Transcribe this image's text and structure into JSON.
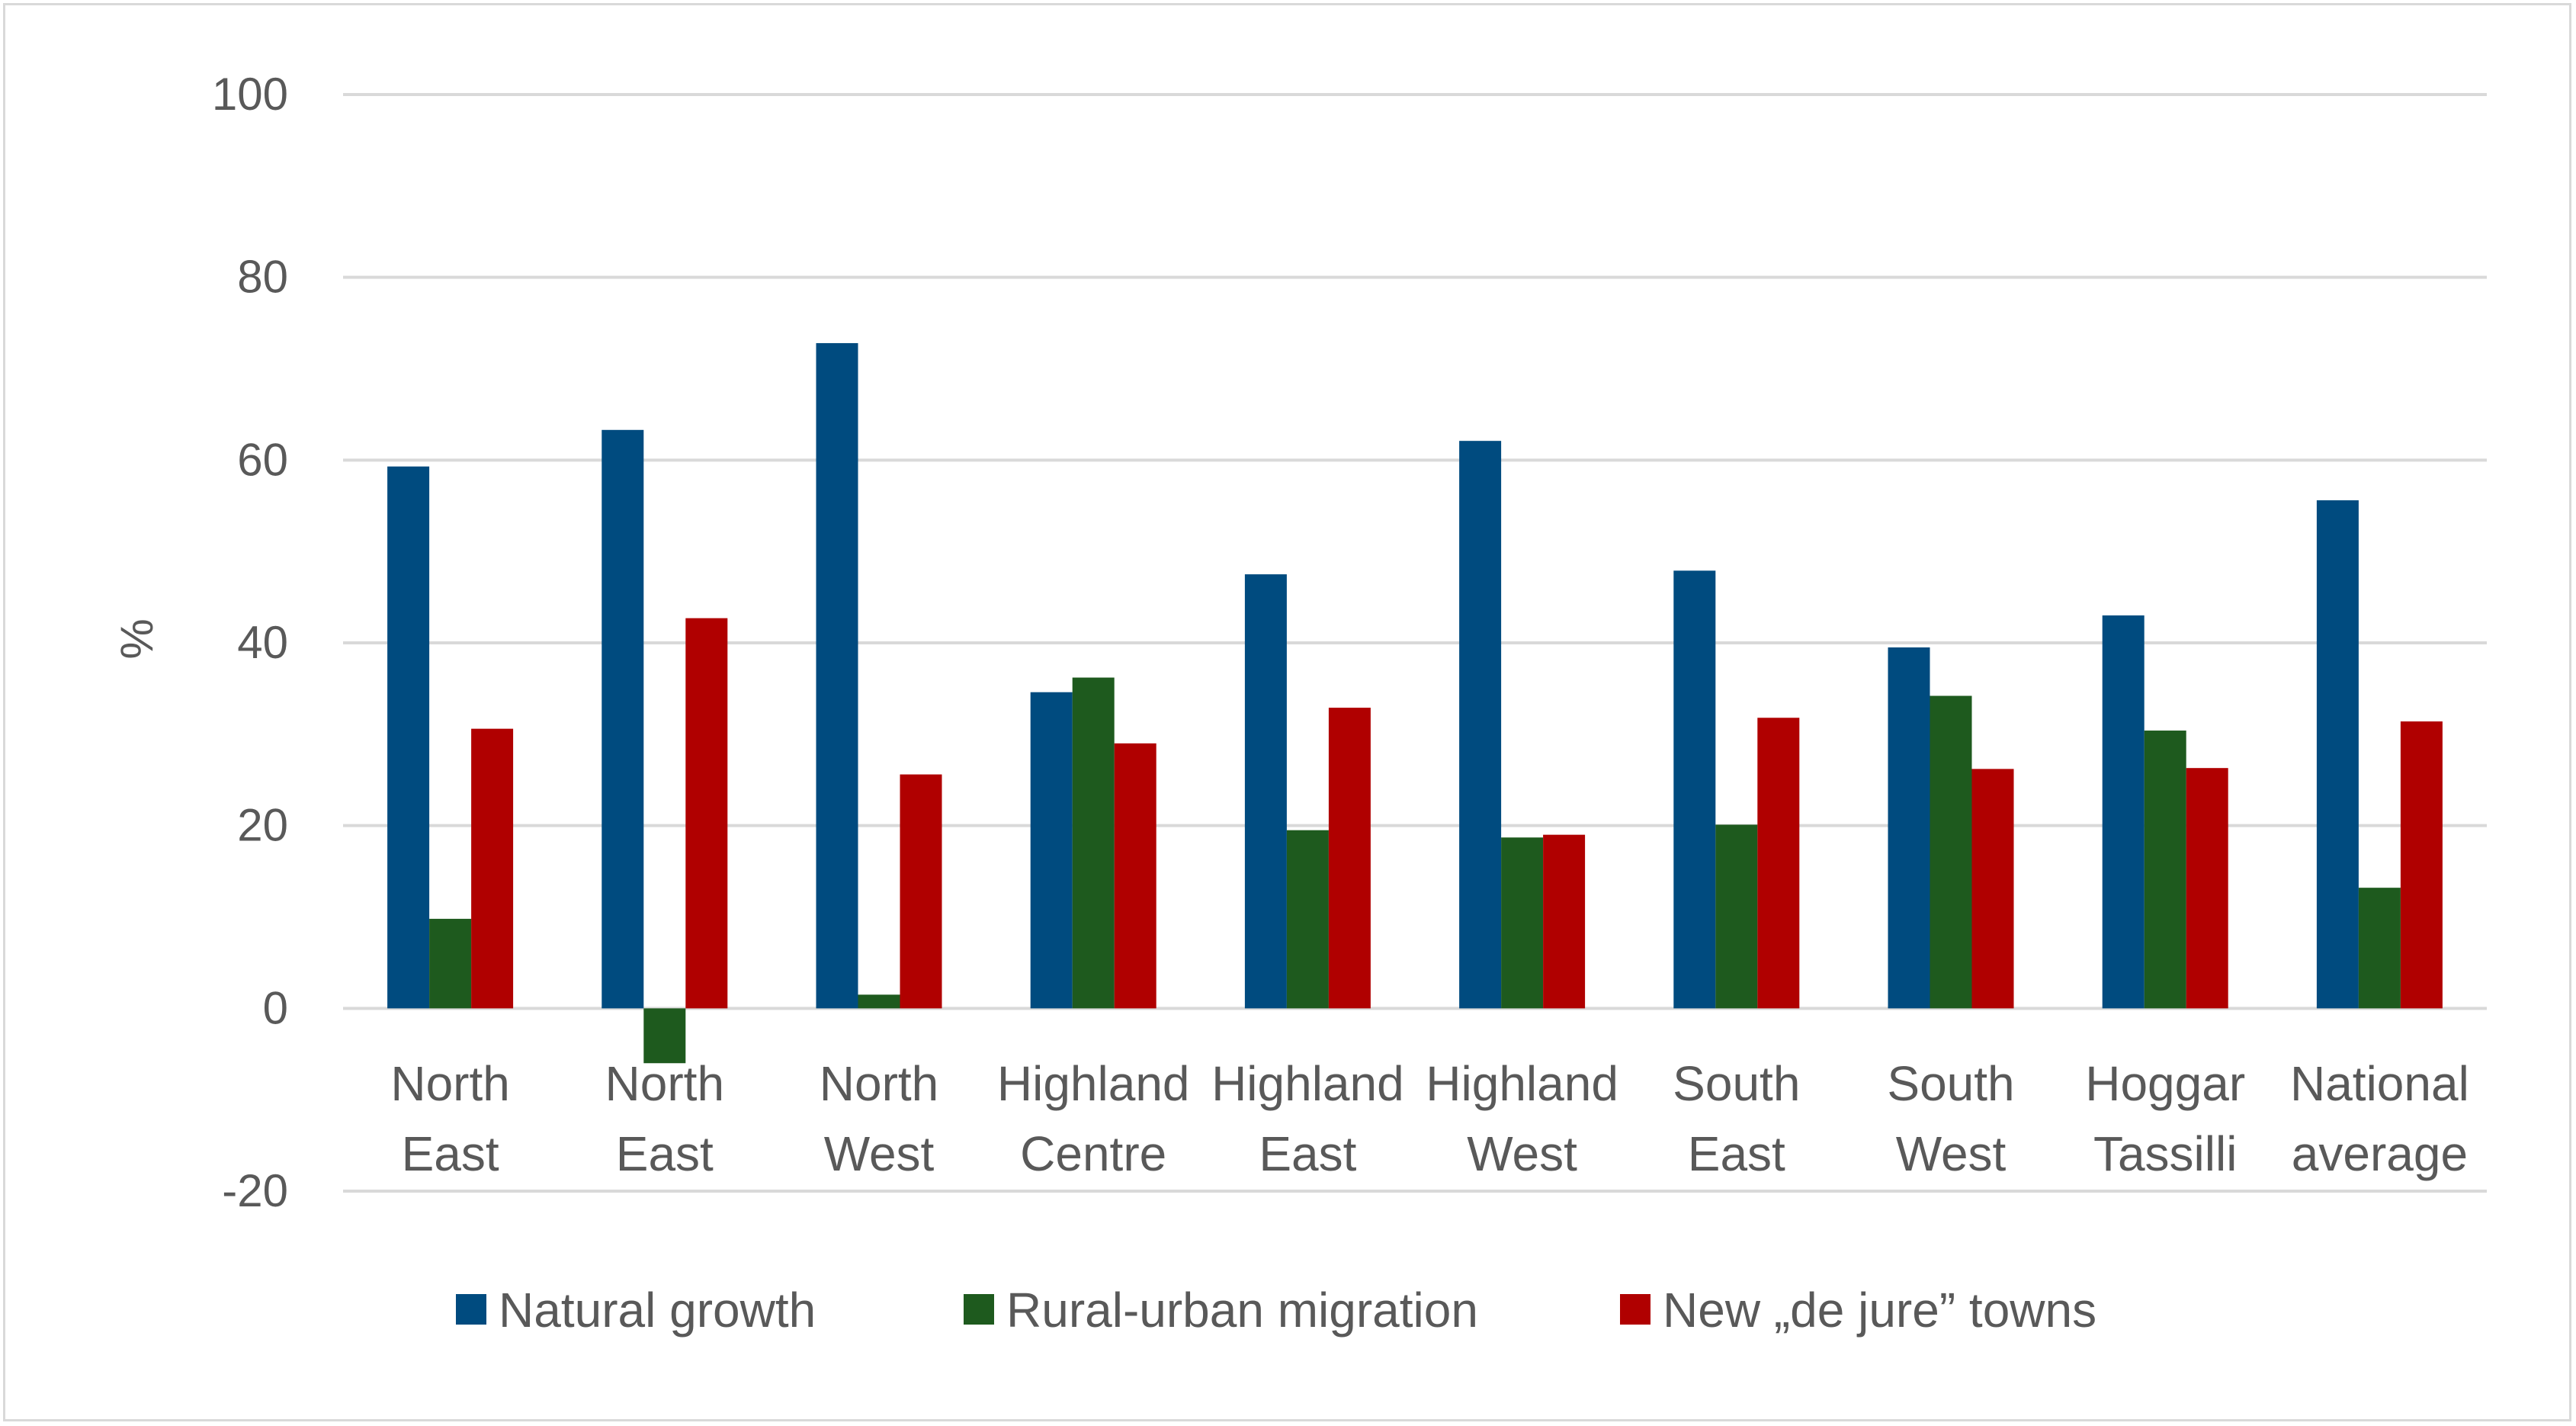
{
  "chart_data": {
    "type": "bar",
    "title": "",
    "xlabel": "",
    "ylabel": "%",
    "ylim": [
      -20,
      100
    ],
    "yticks": [
      100,
      80,
      60,
      40,
      20,
      0,
      -20
    ],
    "grid": true,
    "legend_position": "bottom",
    "categories": [
      [
        "North",
        "East"
      ],
      [
        "North",
        "East"
      ],
      [
        "North",
        "West"
      ],
      [
        "Highland",
        "Centre"
      ],
      [
        "Highland",
        "East"
      ],
      [
        "Highland",
        "West"
      ],
      [
        "South",
        "East"
      ],
      [
        "South",
        "West"
      ],
      [
        "Hoggar",
        "Tassilli"
      ],
      [
        "National",
        "average"
      ]
    ],
    "series": [
      {
        "name": "Natural growth",
        "color": "#004b7f",
        "values": [
          59.3,
          63.3,
          72.8,
          34.6,
          47.5,
          62.1,
          47.9,
          39.5,
          43.0,
          55.6
        ]
      },
      {
        "name": "Rural-urban migration",
        "color": "#1e5a1e",
        "values": [
          9.8,
          -6.0,
          1.5,
          36.2,
          19.5,
          18.7,
          20.1,
          34.2,
          30.4,
          13.2
        ]
      },
      {
        "name": "New „de jure” towns",
        "color": "#b00000",
        "values": [
          30.6,
          42.7,
          25.6,
          29.0,
          32.9,
          19.0,
          31.8,
          26.2,
          26.3,
          31.4
        ]
      }
    ]
  }
}
